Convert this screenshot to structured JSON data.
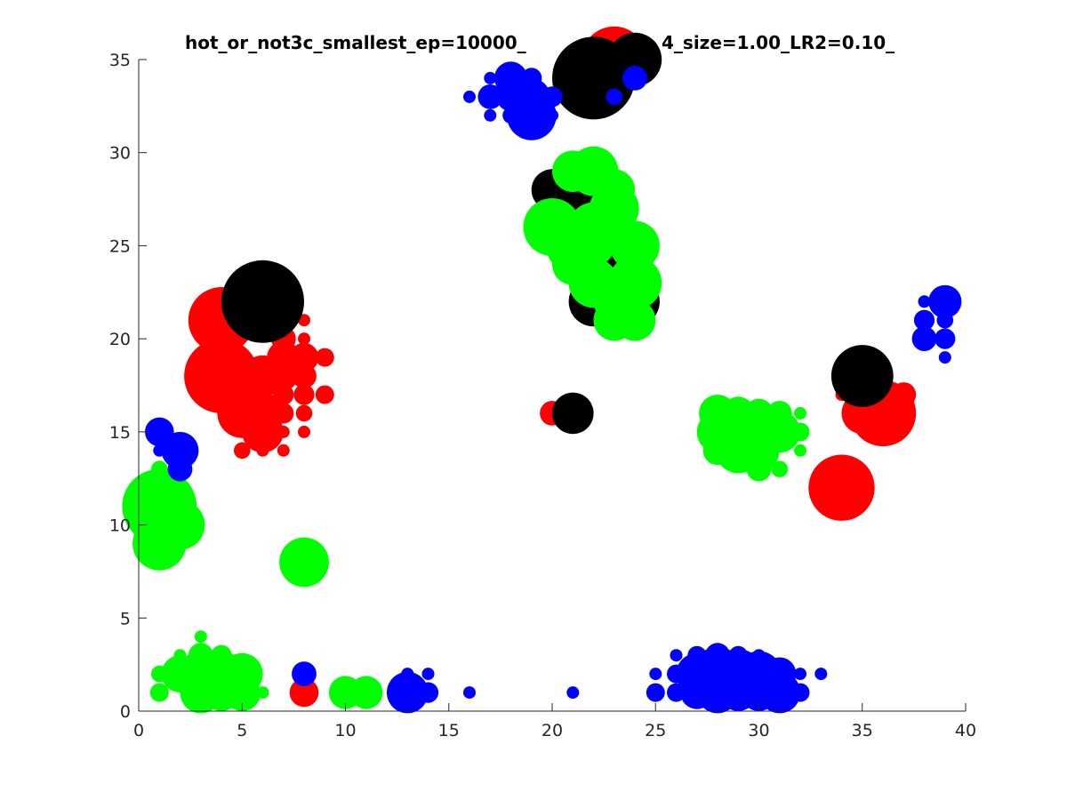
{
  "chart_data": {
    "type": "scatter",
    "title": "hot_or_not3c_smallest_ep=10000_",
    "title_right": "4_size=1.00_LR2=0.10_",
    "xlabel": "",
    "ylabel": "",
    "xlim": [
      0,
      40
    ],
    "ylim": [
      0,
      35
    ],
    "xticks": [
      0,
      5,
      10,
      15,
      20,
      25,
      30,
      35,
      40
    ],
    "yticks": [
      0,
      5,
      10,
      15,
      20,
      25,
      30,
      35
    ],
    "grid": false,
    "box": "left-bottom",
    "colors": {
      "red": "#ff0000",
      "green": "#00ff00",
      "blue": "#0000ff",
      "black": "#000000",
      "axis": "#262626"
    },
    "series": [
      {
        "color": "red",
        "points": [
          [
            4,
            21,
            1.6
          ],
          [
            4,
            18,
            1.8
          ],
          [
            5,
            17,
            1.4
          ],
          [
            5,
            16,
            1.2
          ],
          [
            6,
            15,
            1.0
          ],
          [
            5,
            14,
            0.4
          ],
          [
            6,
            18,
            1.0
          ],
          [
            6,
            16,
            1.0
          ],
          [
            7,
            19,
            0.8
          ],
          [
            7,
            18,
            0.7
          ],
          [
            7,
            17,
            0.5
          ],
          [
            7,
            16,
            0.5
          ],
          [
            8,
            19,
            0.7
          ],
          [
            8,
            18,
            0.6
          ],
          [
            8,
            17,
            0.5
          ],
          [
            8,
            16,
            0.4
          ],
          [
            7,
            15,
            0.3
          ],
          [
            6,
            14,
            0.3
          ],
          [
            7,
            14,
            0.3
          ],
          [
            7,
            22,
            0.6
          ],
          [
            7,
            21,
            0.5
          ],
          [
            7,
            20,
            0.6
          ],
          [
            8,
            21,
            0.3
          ],
          [
            8,
            20,
            0.3
          ],
          [
            8,
            15,
            0.3
          ],
          [
            9,
            19,
            0.45
          ],
          [
            9,
            17,
            0.45
          ],
          [
            20,
            16,
            0.6
          ],
          [
            23,
            35,
            1.6
          ],
          [
            34,
            17,
            0.3
          ],
          [
            35,
            17,
            0.8
          ],
          [
            35,
            16,
            1.0
          ],
          [
            36,
            16,
            1.6
          ],
          [
            37,
            17,
            0.6
          ],
          [
            36,
            18,
            0.4
          ],
          [
            34,
            12,
            1.6
          ],
          [
            8,
            1,
            0.7
          ],
          [
            35,
            19,
            0.3
          ]
        ]
      },
      {
        "color": "black",
        "points": [
          [
            6,
            22,
            2.0
          ],
          [
            22,
            34,
            2.0
          ],
          [
            24,
            35,
            1.3
          ],
          [
            21,
            28,
            1.2
          ],
          [
            20,
            28,
            1.0
          ],
          [
            22,
            22,
            1.2
          ],
          [
            23,
            24,
            1.2
          ],
          [
            24,
            22,
            1.2
          ],
          [
            21,
            16,
            1.0
          ],
          [
            35,
            18,
            1.5
          ]
        ]
      },
      {
        "color": "green",
        "points": [
          [
            1,
            11,
            1.8
          ],
          [
            1,
            9,
            1.3
          ],
          [
            2,
            10,
            1.2
          ],
          [
            1,
            12,
            0.9
          ],
          [
            1,
            13,
            0.4
          ],
          [
            22,
            29,
            1.2
          ],
          [
            23,
            28,
            1.0
          ],
          [
            21,
            29,
            1.0
          ],
          [
            20,
            26,
            1.4
          ],
          [
            21,
            25,
            1.3
          ],
          [
            22,
            26,
            1.2
          ],
          [
            23,
            27,
            1.2
          ],
          [
            21,
            24,
            1.0
          ],
          [
            22,
            23,
            1.2
          ],
          [
            23,
            22,
            1.0
          ],
          [
            24,
            25,
            1.2
          ],
          [
            24,
            23,
            1.3
          ],
          [
            23,
            21,
            1.0
          ],
          [
            24,
            21,
            1.0
          ],
          [
            22,
            25,
            1.0
          ],
          [
            23,
            26,
            1.0
          ],
          [
            8,
            8,
            1.2
          ],
          [
            1,
            2,
            0.4
          ],
          [
            1,
            1,
            0.45
          ],
          [
            2,
            2,
            0.9
          ],
          [
            3,
            2,
            1.1
          ],
          [
            3,
            1,
            1.0
          ],
          [
            4,
            2,
            1.1
          ],
          [
            4,
            1,
            0.9
          ],
          [
            5,
            2,
            1.0
          ],
          [
            5,
            1,
            0.9
          ],
          [
            6,
            1,
            0.3
          ],
          [
            3,
            4,
            0.3
          ],
          [
            4,
            3,
            0.5
          ],
          [
            2,
            3,
            0.3
          ],
          [
            3,
            3,
            0.6
          ],
          [
            10,
            1,
            0.8
          ],
          [
            11,
            1,
            0.8
          ],
          [
            28,
            16,
            0.9
          ],
          [
            28,
            15,
            1.0
          ],
          [
            29,
            15,
            1.2
          ],
          [
            29,
            14,
            1.1
          ],
          [
            30,
            15,
            1.1
          ],
          [
            30,
            14,
            1.0
          ],
          [
            31,
            15,
            1.0
          ],
          [
            31,
            16,
            0.6
          ],
          [
            29,
            16,
            0.8
          ],
          [
            30,
            16,
            0.7
          ],
          [
            32,
            16,
            0.3
          ],
          [
            32,
            15,
            0.45
          ],
          [
            32,
            14,
            0.3
          ],
          [
            31,
            13,
            0.4
          ],
          [
            30,
            13,
            0.6
          ],
          [
            28,
            14,
            0.7
          ]
        ]
      },
      {
        "color": "blue",
        "points": [
          [
            18,
            34,
            0.8
          ],
          [
            18,
            33,
            0.7
          ],
          [
            19,
            34,
            0.5
          ],
          [
            19,
            33,
            0.9
          ],
          [
            19,
            32,
            1.2
          ],
          [
            20,
            33,
            0.5
          ],
          [
            17,
            33,
            0.6
          ],
          [
            17,
            34,
            0.3
          ],
          [
            16,
            33,
            0.3
          ],
          [
            17,
            32,
            0.3
          ],
          [
            18,
            32,
            0.4
          ],
          [
            20,
            32,
            0.3
          ],
          [
            23,
            33,
            0.4
          ],
          [
            24,
            34,
            0.6
          ],
          [
            1,
            15,
            0.7
          ],
          [
            2,
            14,
            0.9
          ],
          [
            2,
            13,
            0.6
          ],
          [
            1,
            14,
            0.3
          ],
          [
            39,
            22,
            0.8
          ],
          [
            38,
            22,
            0.3
          ],
          [
            38,
            21,
            0.5
          ],
          [
            38,
            20,
            0.6
          ],
          [
            39,
            20,
            0.5
          ],
          [
            39,
            21,
            0.4
          ],
          [
            39,
            19,
            0.3
          ],
          [
            8,
            2,
            0.6
          ],
          [
            13,
            1,
            1.0
          ],
          [
            13,
            2,
            0.3
          ],
          [
            14,
            1,
            0.5
          ],
          [
            14,
            2,
            0.3
          ],
          [
            16,
            1,
            0.3
          ],
          [
            21,
            1,
            0.3
          ],
          [
            25,
            1,
            0.45
          ],
          [
            25,
            2,
            0.3
          ],
          [
            26,
            1,
            0.45
          ],
          [
            26,
            2,
            0.45
          ],
          [
            26,
            3,
            0.3
          ],
          [
            27,
            1,
            0.8
          ],
          [
            27,
            2,
            1.0
          ],
          [
            28,
            2,
            1.3
          ],
          [
            28,
            1,
            1.0
          ],
          [
            28,
            3,
            0.6
          ],
          [
            29,
            2,
            1.2
          ],
          [
            29,
            1,
            0.9
          ],
          [
            30,
            2,
            1.1
          ],
          [
            30,
            1,
            0.9
          ],
          [
            31,
            1,
            1.0
          ],
          [
            31,
            2,
            0.8
          ],
          [
            30,
            3,
            0.3
          ],
          [
            32,
            1,
            0.45
          ],
          [
            32,
            2,
            0.3
          ],
          [
            33,
            2,
            0.3
          ],
          [
            27,
            3,
            0.45
          ],
          [
            29,
            3,
            0.45
          ]
        ]
      }
    ]
  }
}
